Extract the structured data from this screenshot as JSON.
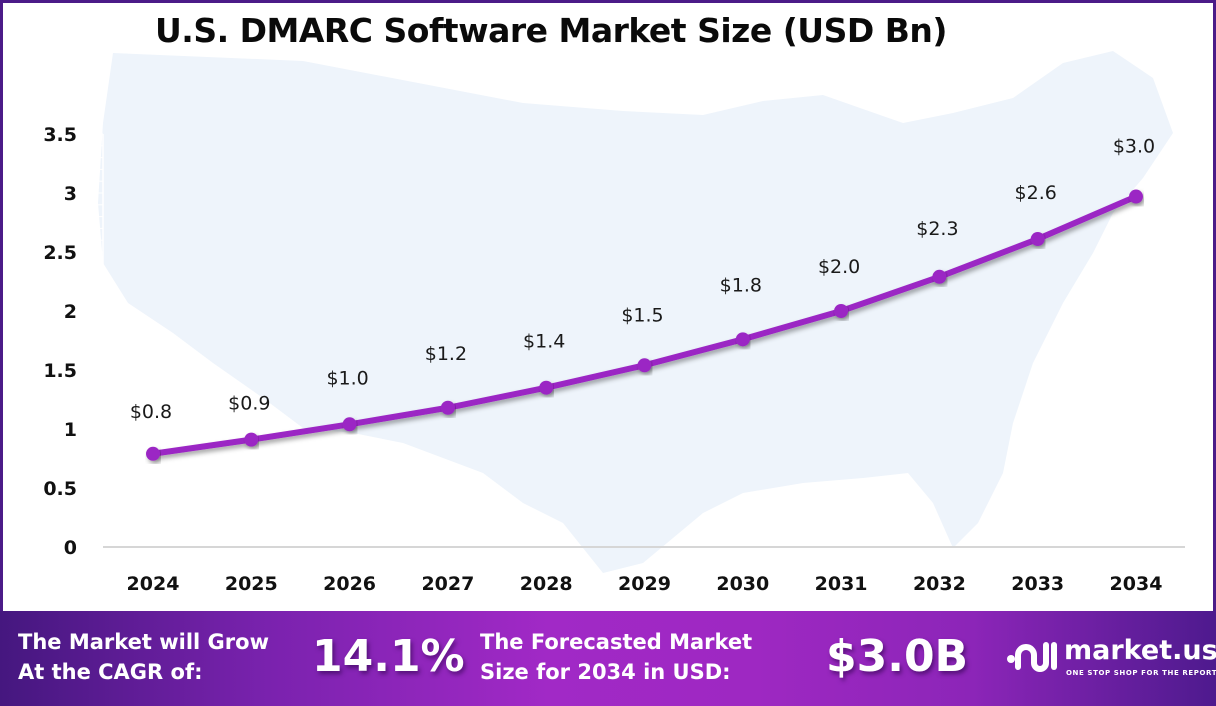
{
  "chart_data": {
    "type": "line",
    "title": "U.S. DMARC Software Market Size (USD Bn)",
    "xlabel": "",
    "ylabel": "",
    "categories": [
      "2024",
      "2025",
      "2026",
      "2027",
      "2028",
      "2029",
      "2030",
      "2031",
      "2032",
      "2033",
      "2034"
    ],
    "series": [
      {
        "name": "Market Size (USD Bn)",
        "values": [
          0.79,
          0.91,
          1.04,
          1.18,
          1.35,
          1.54,
          1.76,
          2.0,
          2.29,
          2.61,
          2.97
        ],
        "labels": [
          "$0.8",
          "$0.9",
          "$1.0",
          "$1.2",
          "$1.4",
          "$1.5",
          "$1.8",
          "$2.0",
          "$2.3",
          "$2.6",
          "$3.0"
        ],
        "color": "#9B27C4"
      }
    ],
    "yticks": [
      "0",
      "0.5",
      "1",
      "1.5",
      "2",
      "2.5",
      "3",
      "3.5"
    ],
    "ytick_values": [
      0,
      0.5,
      1,
      1.5,
      2,
      2.5,
      3,
      3.5
    ],
    "ylim": [
      0,
      3.5
    ],
    "grid": false,
    "legend": "none"
  },
  "banner": {
    "cagr_text_line1": "The Market will Grow",
    "cagr_text_line2": "At the CAGR of:",
    "cagr_value": "14.1%",
    "forecast_text_line1": "The Forecasted Market",
    "forecast_text_line2": "Size for 2034 in USD:",
    "forecast_value": "$3.0B",
    "logo_name": "market.us",
    "logo_tagline": "ONE STOP SHOP FOR THE REPORTS"
  },
  "colors": {
    "line": "#9B27C4",
    "frame": "#4B1B88",
    "map": "#EEF4FB",
    "axis": "#D6D6D6"
  }
}
